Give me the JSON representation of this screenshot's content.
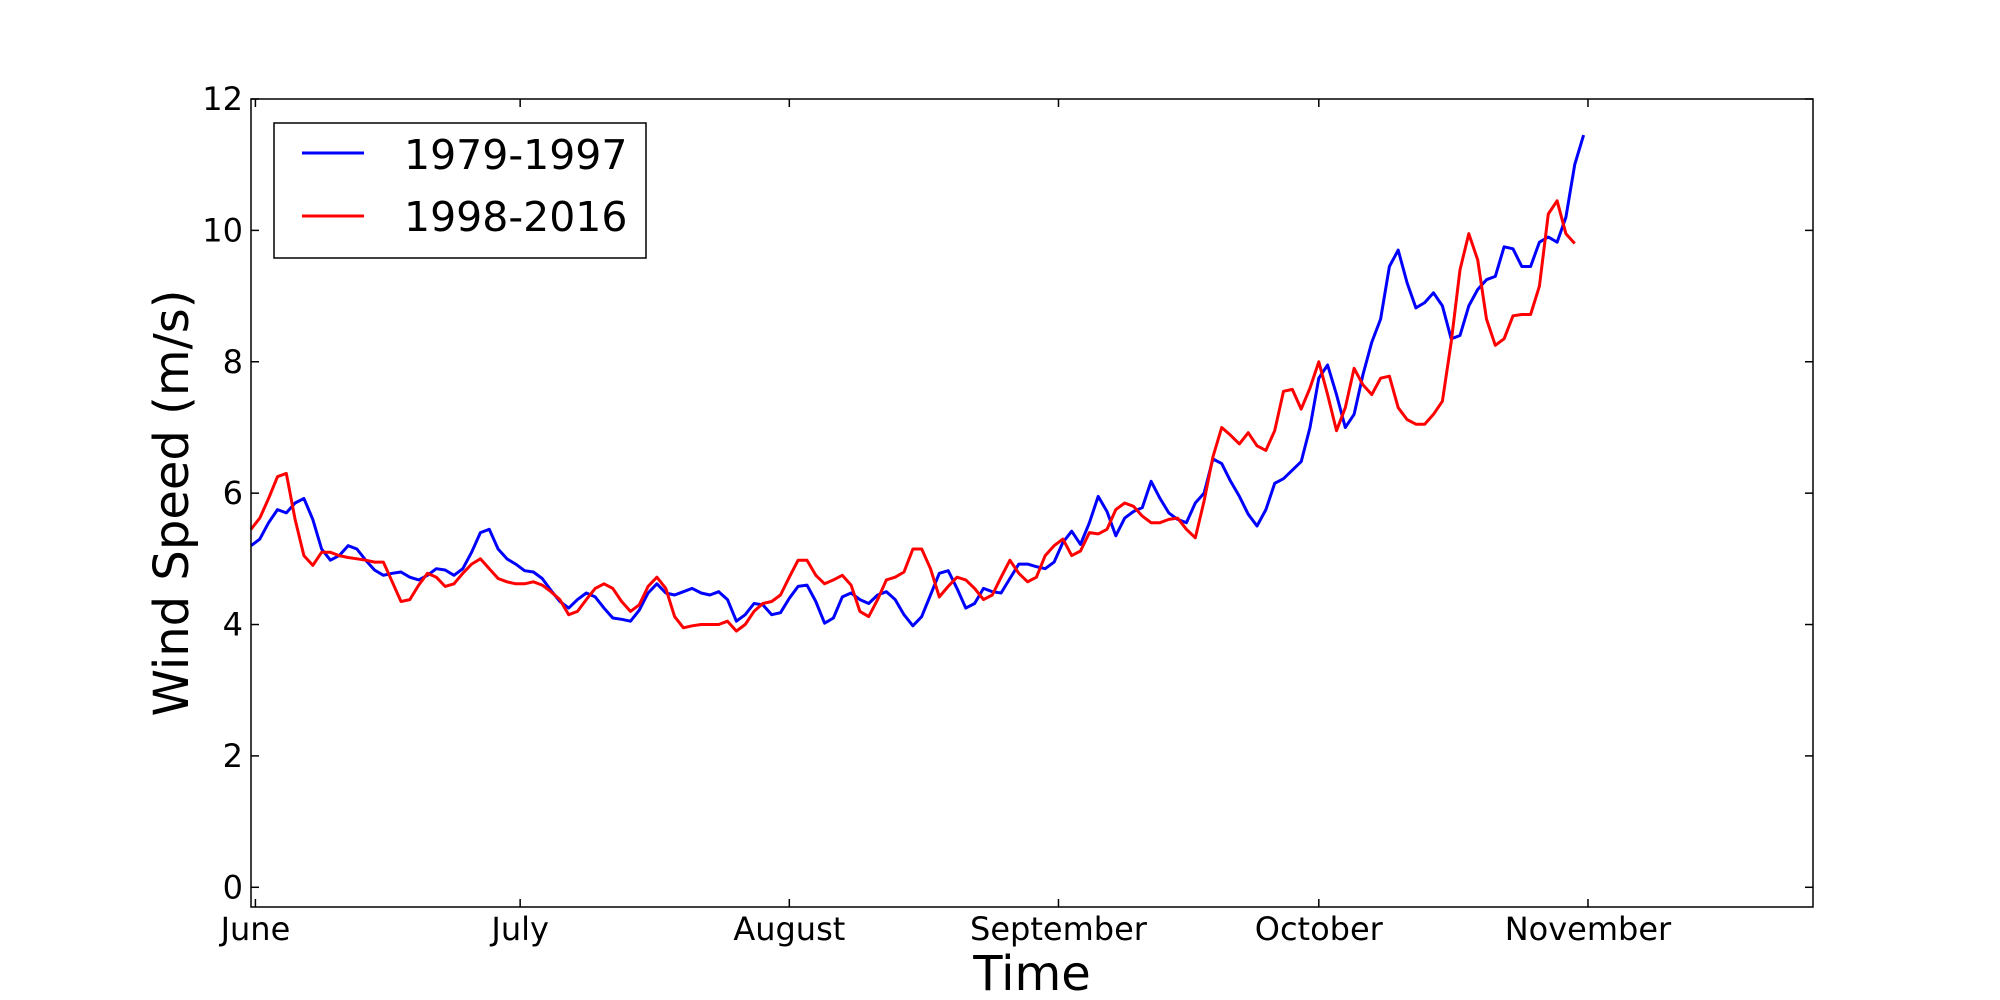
{
  "chart_data": {
    "type": "line",
    "xlabel": "Time",
    "ylabel": "Wind Speed (m/s)",
    "xlim": [
      0,
      177
    ],
    "ylim": [
      -0.3,
      12
    ],
    "y_ticks": [
      0,
      2,
      4,
      6,
      8,
      10,
      12
    ],
    "x_ticks": [
      {
        "label": "June",
        "x": 0.5
      },
      {
        "label": "July",
        "x": 30.5
      },
      {
        "label": "August",
        "x": 61
      },
      {
        "label": "September",
        "x": 91.5
      },
      {
        "label": "October",
        "x": 121
      },
      {
        "label": "November",
        "x": 151.5
      }
    ],
    "grid": false,
    "legend_position": "top-left",
    "series": [
      {
        "name": "1979-1997",
        "color": "#0000ff",
        "points": [
          [
            0,
            5.2
          ],
          [
            1,
            5.3
          ],
          [
            2,
            5.55
          ],
          [
            3,
            5.75
          ],
          [
            4,
            5.7
          ],
          [
            5,
            5.85
          ],
          [
            6,
            5.92
          ],
          [
            7,
            5.6
          ],
          [
            8,
            5.15
          ],
          [
            9,
            4.98
          ],
          [
            10,
            5.05
          ],
          [
            11,
            5.2
          ],
          [
            12,
            5.15
          ],
          [
            13,
            4.98
          ],
          [
            14,
            4.83
          ],
          [
            15,
            4.75
          ],
          [
            16,
            4.78
          ],
          [
            17,
            4.8
          ],
          [
            18,
            4.72
          ],
          [
            19,
            4.68
          ],
          [
            20,
            4.75
          ],
          [
            21,
            4.85
          ],
          [
            22,
            4.83
          ],
          [
            23,
            4.75
          ],
          [
            24,
            4.85
          ],
          [
            25,
            5.1
          ],
          [
            26,
            5.4
          ],
          [
            27,
            5.45
          ],
          [
            28,
            5.15
          ],
          [
            29,
            5.0
          ],
          [
            30,
            4.92
          ],
          [
            31,
            4.82
          ],
          [
            32,
            4.8
          ],
          [
            33,
            4.7
          ],
          [
            34,
            4.52
          ],
          [
            35,
            4.35
          ],
          [
            36,
            4.25
          ],
          [
            37,
            4.38
          ],
          [
            38,
            4.48
          ],
          [
            39,
            4.42
          ],
          [
            40,
            4.25
          ],
          [
            41,
            4.1
          ],
          [
            42,
            4.08
          ],
          [
            43,
            4.05
          ],
          [
            44,
            4.22
          ],
          [
            45,
            4.48
          ],
          [
            46,
            4.62
          ],
          [
            47,
            4.48
          ],
          [
            48,
            4.45
          ],
          [
            49,
            4.5
          ],
          [
            50,
            4.55
          ],
          [
            51,
            4.48
          ],
          [
            52,
            4.45
          ],
          [
            53,
            4.5
          ],
          [
            54,
            4.38
          ],
          [
            55,
            4.05
          ],
          [
            56,
            4.15
          ],
          [
            57,
            4.32
          ],
          [
            58,
            4.3
          ],
          [
            59,
            4.15
          ],
          [
            60,
            4.18
          ],
          [
            61,
            4.4
          ],
          [
            62,
            4.58
          ],
          [
            63,
            4.6
          ],
          [
            64,
            4.35
          ],
          [
            65,
            4.02
          ],
          [
            66,
            4.1
          ],
          [
            67,
            4.42
          ],
          [
            68,
            4.48
          ],
          [
            69,
            4.38
          ],
          [
            70,
            4.32
          ],
          [
            71,
            4.45
          ],
          [
            72,
            4.5
          ],
          [
            73,
            4.38
          ],
          [
            74,
            4.15
          ],
          [
            75,
            3.98
          ],
          [
            76,
            4.12
          ],
          [
            77,
            4.45
          ],
          [
            78,
            4.78
          ],
          [
            79,
            4.82
          ],
          [
            80,
            4.55
          ],
          [
            81,
            4.25
          ],
          [
            82,
            4.32
          ],
          [
            83,
            4.55
          ],
          [
            84,
            4.5
          ],
          [
            85,
            4.48
          ],
          [
            86,
            4.7
          ],
          [
            87,
            4.92
          ],
          [
            88,
            4.92
          ],
          [
            89,
            4.88
          ],
          [
            90,
            4.85
          ],
          [
            91,
            4.95
          ],
          [
            92,
            5.25
          ],
          [
            93,
            5.42
          ],
          [
            94,
            5.22
          ],
          [
            95,
            5.55
          ],
          [
            96,
            5.95
          ],
          [
            97,
            5.72
          ],
          [
            98,
            5.35
          ],
          [
            99,
            5.62
          ],
          [
            100,
            5.72
          ],
          [
            101,
            5.78
          ],
          [
            102,
            6.18
          ],
          [
            103,
            5.92
          ],
          [
            104,
            5.7
          ],
          [
            105,
            5.6
          ],
          [
            106,
            5.55
          ],
          [
            107,
            5.85
          ],
          [
            108,
            6.0
          ],
          [
            109,
            6.52
          ],
          [
            110,
            6.45
          ],
          [
            111,
            6.18
          ],
          [
            112,
            5.95
          ],
          [
            113,
            5.68
          ],
          [
            114,
            5.5
          ],
          [
            115,
            5.75
          ],
          [
            116,
            6.15
          ],
          [
            117,
            6.22
          ],
          [
            118,
            6.35
          ],
          [
            119,
            6.48
          ],
          [
            120,
            7.0
          ],
          [
            121,
            7.75
          ],
          [
            122,
            7.95
          ],
          [
            123,
            7.5
          ],
          [
            124,
            7.0
          ],
          [
            125,
            7.2
          ],
          [
            126,
            7.8
          ],
          [
            127,
            8.3
          ],
          [
            128,
            8.65
          ],
          [
            129,
            9.45
          ],
          [
            130,
            9.7
          ],
          [
            131,
            9.2
          ],
          [
            132,
            8.82
          ],
          [
            133,
            8.9
          ],
          [
            134,
            9.05
          ],
          [
            135,
            8.85
          ],
          [
            136,
            8.35
          ],
          [
            137,
            8.4
          ],
          [
            138,
            8.85
          ],
          [
            139,
            9.1
          ],
          [
            140,
            9.25
          ],
          [
            141,
            9.3
          ],
          [
            142,
            9.75
          ],
          [
            143,
            9.72
          ],
          [
            144,
            9.45
          ],
          [
            145,
            9.45
          ],
          [
            146,
            9.82
          ],
          [
            147,
            9.9
          ],
          [
            148,
            9.82
          ],
          [
            149,
            10.2
          ],
          [
            150,
            11.0
          ],
          [
            151,
            11.45
          ]
        ]
      },
      {
        "name": "1998-2016",
        "color": "#ff0000",
        "points": [
          [
            0,
            5.45
          ],
          [
            1,
            5.62
          ],
          [
            2,
            5.92
          ],
          [
            3,
            6.25
          ],
          [
            4,
            6.3
          ],
          [
            5,
            5.6
          ],
          [
            6,
            5.05
          ],
          [
            7,
            4.9
          ],
          [
            8,
            5.1
          ],
          [
            9,
            5.1
          ],
          [
            10,
            5.05
          ],
          [
            11,
            5.02
          ],
          [
            12,
            5.0
          ],
          [
            13,
            4.98
          ],
          [
            14,
            4.95
          ],
          [
            15,
            4.95
          ],
          [
            16,
            4.65
          ],
          [
            17,
            4.35
          ],
          [
            18,
            4.38
          ],
          [
            19,
            4.6
          ],
          [
            20,
            4.78
          ],
          [
            21,
            4.72
          ],
          [
            22,
            4.58
          ],
          [
            23,
            4.62
          ],
          [
            24,
            4.78
          ],
          [
            25,
            4.92
          ],
          [
            26,
            5.0
          ],
          [
            27,
            4.85
          ],
          [
            28,
            4.7
          ],
          [
            29,
            4.65
          ],
          [
            30,
            4.62
          ],
          [
            31,
            4.62
          ],
          [
            32,
            4.65
          ],
          [
            33,
            4.6
          ],
          [
            34,
            4.5
          ],
          [
            35,
            4.38
          ],
          [
            36,
            4.15
          ],
          [
            37,
            4.2
          ],
          [
            38,
            4.38
          ],
          [
            39,
            4.55
          ],
          [
            40,
            4.62
          ],
          [
            41,
            4.55
          ],
          [
            42,
            4.35
          ],
          [
            43,
            4.2
          ],
          [
            44,
            4.3
          ],
          [
            45,
            4.58
          ],
          [
            46,
            4.72
          ],
          [
            47,
            4.55
          ],
          [
            48,
            4.12
          ],
          [
            49,
            3.95
          ],
          [
            50,
            3.98
          ],
          [
            51,
            4.0
          ],
          [
            52,
            4.0
          ],
          [
            53,
            4.0
          ],
          [
            54,
            4.05
          ],
          [
            55,
            3.9
          ],
          [
            56,
            4.0
          ],
          [
            57,
            4.2
          ],
          [
            58,
            4.32
          ],
          [
            59,
            4.35
          ],
          [
            60,
            4.45
          ],
          [
            61,
            4.72
          ],
          [
            62,
            4.98
          ],
          [
            63,
            4.98
          ],
          [
            64,
            4.75
          ],
          [
            65,
            4.62
          ],
          [
            66,
            4.68
          ],
          [
            67,
            4.75
          ],
          [
            68,
            4.6
          ],
          [
            69,
            4.2
          ],
          [
            70,
            4.12
          ],
          [
            71,
            4.38
          ],
          [
            72,
            4.68
          ],
          [
            73,
            4.72
          ],
          [
            74,
            4.8
          ],
          [
            75,
            5.15
          ],
          [
            76,
            5.15
          ],
          [
            77,
            4.85
          ],
          [
            78,
            4.42
          ],
          [
            79,
            4.58
          ],
          [
            80,
            4.72
          ],
          [
            81,
            4.68
          ],
          [
            82,
            4.55
          ],
          [
            83,
            4.38
          ],
          [
            84,
            4.45
          ],
          [
            85,
            4.72
          ],
          [
            86,
            4.98
          ],
          [
            87,
            4.78
          ],
          [
            88,
            4.65
          ],
          [
            89,
            4.72
          ],
          [
            90,
            5.05
          ],
          [
            91,
            5.2
          ],
          [
            92,
            5.3
          ],
          [
            93,
            5.05
          ],
          [
            94,
            5.12
          ],
          [
            95,
            5.4
          ],
          [
            96,
            5.38
          ],
          [
            97,
            5.45
          ],
          [
            98,
            5.75
          ],
          [
            99,
            5.85
          ],
          [
            100,
            5.8
          ],
          [
            101,
            5.65
          ],
          [
            102,
            5.55
          ],
          [
            103,
            5.55
          ],
          [
            104,
            5.6
          ],
          [
            105,
            5.62
          ],
          [
            106,
            5.45
          ],
          [
            107,
            5.32
          ],
          [
            108,
            5.88
          ],
          [
            109,
            6.55
          ],
          [
            110,
            7.0
          ],
          [
            111,
            6.88
          ],
          [
            112,
            6.75
          ],
          [
            113,
            6.92
          ],
          [
            114,
            6.72
          ],
          [
            115,
            6.65
          ],
          [
            116,
            6.95
          ],
          [
            117,
            7.55
          ],
          [
            118,
            7.58
          ],
          [
            119,
            7.28
          ],
          [
            120,
            7.6
          ],
          [
            121,
            8.0
          ],
          [
            122,
            7.5
          ],
          [
            123,
            6.95
          ],
          [
            124,
            7.3
          ],
          [
            125,
            7.9
          ],
          [
            126,
            7.65
          ],
          [
            127,
            7.5
          ],
          [
            128,
            7.75
          ],
          [
            129,
            7.78
          ],
          [
            130,
            7.3
          ],
          [
            131,
            7.12
          ],
          [
            132,
            7.05
          ],
          [
            133,
            7.05
          ],
          [
            134,
            7.2
          ],
          [
            135,
            7.4
          ],
          [
            136,
            8.3
          ],
          [
            137,
            9.4
          ],
          [
            138,
            9.95
          ],
          [
            139,
            9.55
          ],
          [
            140,
            8.65
          ],
          [
            141,
            8.25
          ],
          [
            142,
            8.35
          ],
          [
            143,
            8.7
          ],
          [
            144,
            8.72
          ],
          [
            145,
            8.72
          ],
          [
            146,
            9.15
          ],
          [
            147,
            10.25
          ],
          [
            148,
            10.45
          ],
          [
            149,
            9.95
          ],
          [
            150,
            9.8
          ]
        ]
      }
    ]
  }
}
